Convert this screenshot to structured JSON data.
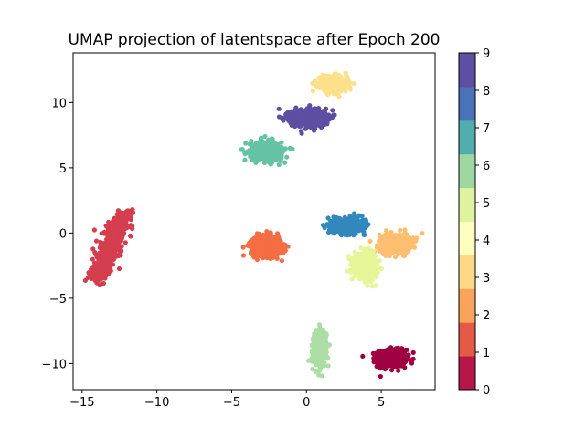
{
  "chart_data": {
    "type": "scatter",
    "title": "UMAP projection of latentspace after Epoch 200",
    "xlabel": "",
    "ylabel": "",
    "xlim": [
      -15.6,
      8.6
    ],
    "ylim": [
      -12.0,
      13.8
    ],
    "x_ticks": [
      -15,
      -10,
      -5,
      0,
      5
    ],
    "y_ticks": [
      -10,
      -5,
      0,
      5,
      10
    ],
    "grid": false,
    "colormap": "Spectral",
    "colorbar": {
      "ticks": [
        0,
        1,
        2,
        3,
        4,
        5,
        6,
        7,
        8,
        9
      ],
      "range": [
        0,
        9
      ],
      "bins": 10,
      "colors": [
        "#b7164a",
        "#e45a47",
        "#f9a35b",
        "#fdd885",
        "#fefebe",
        "#def2a0",
        "#9fd7a3",
        "#52aeae",
        "#4a73b7",
        "#5e4fa2"
      ]
    },
    "clusters": [
      {
        "label": 0,
        "color": "#9e0142",
        "center": [
          5.7,
          -9.6
        ],
        "spread": [
          0.8,
          0.55
        ],
        "points": 600
      },
      {
        "label": 1,
        "color": "#d53e4f",
        "center": [
          -13.3,
          -1.1
        ],
        "spread": [
          0.45,
          1.5
        ],
        "points": 600,
        "shape": "band",
        "from": [
          -12.2,
          1.4
        ],
        "to": [
          -14.0,
          -3.6
        ]
      },
      {
        "label": 2,
        "color": "#f46d43",
        "center": [
          -2.7,
          -1.0
        ],
        "spread": [
          0.85,
          0.65
        ],
        "points": 500
      },
      {
        "label": 3,
        "color": "#fdbf6f",
        "center": [
          5.9,
          -0.8
        ],
        "spread": [
          0.85,
          0.6
        ],
        "points": 500
      },
      {
        "label": 4,
        "color": "#fee08b",
        "center": [
          1.8,
          11.4
        ],
        "spread": [
          0.75,
          0.5
        ],
        "points": 500
      },
      {
        "label": 5,
        "color": "#e6f598",
        "center": [
          4.0,
          -2.5
        ],
        "spread": [
          0.65,
          0.75
        ],
        "points": 500
      },
      {
        "label": 6,
        "color": "#abdda4",
        "center": [
          0.9,
          -8.8
        ],
        "spread": [
          0.35,
          1.1
        ],
        "points": 500
      },
      {
        "label": 7,
        "color": "#66c2a5",
        "center": [
          -2.7,
          6.3
        ],
        "spread": [
          0.9,
          0.6
        ],
        "points": 500
      },
      {
        "label": 8,
        "color": "#3288bd",
        "center": [
          2.8,
          0.6
        ],
        "spread": [
          0.9,
          0.45
        ],
        "points": 500
      },
      {
        "label": 9,
        "color": "#5e4fa2",
        "center": [
          0.1,
          8.8
        ],
        "spread": [
          1.0,
          0.55
        ],
        "points": 550
      }
    ]
  }
}
